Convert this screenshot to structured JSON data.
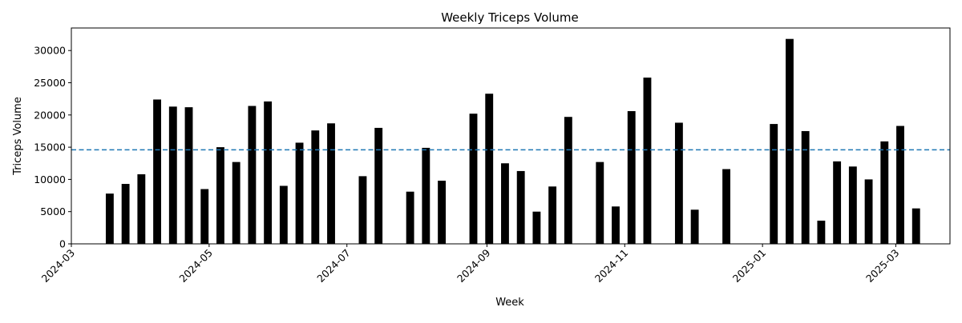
{
  "chart_data": {
    "type": "bar",
    "title": "Weekly Triceps Volume",
    "xlabel": "Week",
    "ylabel": "Triceps Volume",
    "xlim": [
      "2024-03-01",
      "2025-03-25"
    ],
    "ylim": [
      0,
      33500
    ],
    "xticks": [
      "2024-03",
      "2024-05",
      "2024-07",
      "2024-09",
      "2024-11",
      "2025-01",
      "2025-03"
    ],
    "yticks": [
      0,
      5000,
      10000,
      15000,
      20000,
      25000,
      30000
    ],
    "grid": false,
    "bar_color": "#000000",
    "reference_line": {
      "value": 14600,
      "style": "dashed",
      "color": "#1f77b4"
    },
    "x": [
      "2024-03-18",
      "2024-03-25",
      "2024-04-01",
      "2024-04-08",
      "2024-04-15",
      "2024-04-22",
      "2024-04-29",
      "2024-05-06",
      "2024-05-13",
      "2024-05-20",
      "2024-05-27",
      "2024-06-03",
      "2024-06-10",
      "2024-06-17",
      "2024-06-24",
      "2024-07-08",
      "2024-07-15",
      "2024-07-29",
      "2024-08-05",
      "2024-08-12",
      "2024-08-26",
      "2024-09-02",
      "2024-09-09",
      "2024-09-16",
      "2024-09-23",
      "2024-09-30",
      "2024-10-07",
      "2024-10-21",
      "2024-10-28",
      "2024-11-04",
      "2024-11-11",
      "2024-11-25",
      "2024-12-02",
      "2024-12-16",
      "2025-01-06",
      "2025-01-13",
      "2025-01-20",
      "2025-01-27",
      "2025-02-03",
      "2025-02-10",
      "2025-02-17",
      "2025-02-24",
      "2025-03-03",
      "2025-03-10"
    ],
    "values": [
      7800,
      9300,
      10800,
      22400,
      21300,
      21200,
      8500,
      15000,
      12700,
      21400,
      22100,
      9000,
      15700,
      17600,
      18700,
      10500,
      18000,
      8100,
      14900,
      9800,
      20200,
      23300,
      12500,
      11300,
      5000,
      8900,
      19700,
      12700,
      5800,
      20600,
      25800,
      18800,
      5300,
      11600,
      18600,
      31800,
      17500,
      3600,
      12800,
      12000,
      10000,
      15900,
      18300,
      5500
    ]
  }
}
